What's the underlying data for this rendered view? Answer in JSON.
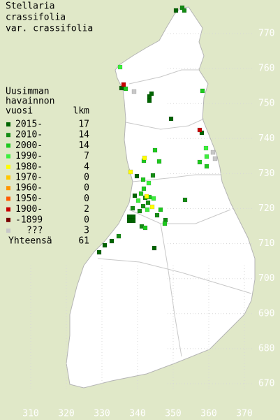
{
  "title": [
    "Stellaria",
    "crassifolia",
    "var. crassifolia"
  ],
  "legend": {
    "header": [
      "Uusimman",
      "havainnon",
      "vuosi"
    ],
    "count_header": "lkm",
    "entries": [
      {
        "label": "2015-",
        "count": 17,
        "color": "#006400"
      },
      {
        "label": "2010-",
        "count": 14,
        "color": "#148c14"
      },
      {
        "label": "2000-",
        "count": 14,
        "color": "#1ec81e"
      },
      {
        "label": "1990-",
        "count": 7,
        "color": "#3cf03c"
      },
      {
        "label": "1980-",
        "count": 4,
        "color": "#ffff00"
      },
      {
        "label": "1970-",
        "count": 0,
        "color": "#ffc800"
      },
      {
        "label": "1960-",
        "count": 0,
        "color": "#ff9600"
      },
      {
        "label": "1950-",
        "count": 0,
        "color": "#ff5a00"
      },
      {
        "label": "1900-",
        "count": 2,
        "color": "#c80000"
      },
      {
        "label": "-1899",
        "count": 0,
        "color": "#780000"
      },
      {
        "label": "???",
        "count": 3,
        "color": "#c8c8c8"
      }
    ],
    "total_label": "Yhteensä",
    "total": 61
  },
  "xticks": [
    310,
    320,
    330,
    340,
    350,
    360,
    370
  ],
  "yticks": [
    670,
    680,
    690,
    700,
    710,
    720,
    730,
    740,
    750,
    760,
    770
  ]
}
